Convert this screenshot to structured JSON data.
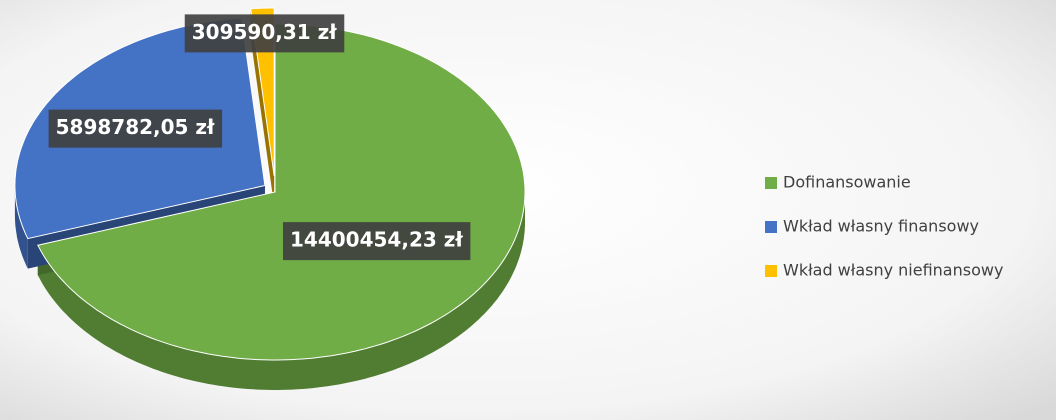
{
  "chart_data": {
    "type": "pie3d",
    "categories": [
      "Dofinansowanie",
      "Wkład własny finansowy",
      "Wkład własny niefinansowy"
    ],
    "values": [
      14400454.23,
      5898782.05,
      309590.31
    ],
    "value_labels": [
      "14400454,23 zł",
      "5898782,05 zł",
      "309590,31 zł"
    ],
    "colors": [
      "#70ad47",
      "#4472c4",
      "#ffc000"
    ],
    "legend": "right"
  }
}
